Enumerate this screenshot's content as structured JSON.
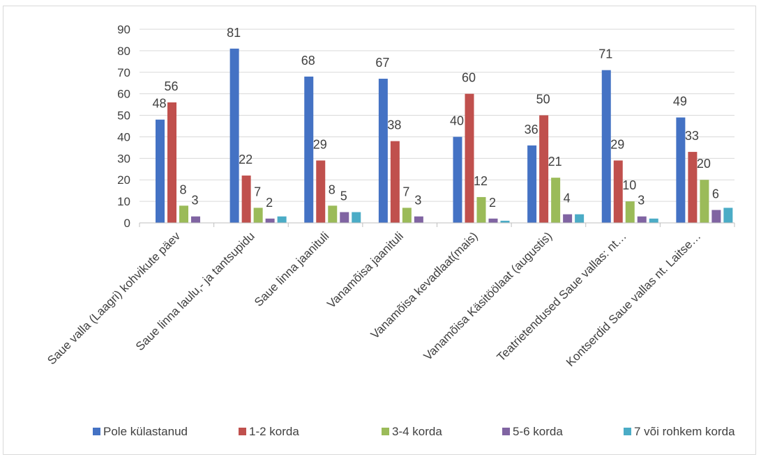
{
  "chart_data": {
    "type": "bar",
    "categories": [
      "Saue valla (Laagri) kohvikute päev",
      "Saue linna laulu,- ja tantsupidu",
      "Saue linna jaanituli",
      "Vanamõisa jaanituli",
      "Vanamõisa kevadlaat(mais)",
      "Vanamõisa Käsitöölaat (augustis)",
      "Teatrietendused Saue vallas: nt…",
      "Kontserdid Saue vallas nt. Laitse…"
    ],
    "series": [
      {
        "name": "Pole külastanud",
        "color": "#4472c4",
        "values": [
          48,
          81,
          68,
          67,
          40,
          36,
          71,
          49
        ],
        "labels": [
          "48",
          "81",
          "68",
          "67",
          "40",
          "36",
          "71",
          "49"
        ]
      },
      {
        "name": "1-2 korda",
        "color": "#c0504d",
        "values": [
          56,
          22,
          29,
          38,
          60,
          50,
          29,
          33
        ],
        "labels": [
          "56",
          "22",
          "29",
          "38",
          "60",
          "50",
          "29",
          "33"
        ]
      },
      {
        "name": "3-4 korda",
        "color": "#9bbb59",
        "values": [
          8,
          7,
          8,
          7,
          12,
          21,
          10,
          20
        ],
        "labels": [
          "8",
          "7",
          "8",
          "7",
          "12",
          "21",
          "10",
          "20"
        ]
      },
      {
        "name": "5-6 korda",
        "color": "#8064a2",
        "values": [
          3,
          2,
          5,
          3,
          2,
          4,
          3,
          6
        ],
        "labels": [
          "3",
          "2",
          "5",
          "3",
          "2",
          "4",
          "3",
          "6"
        ]
      },
      {
        "name": "7 või rohkem korda",
        "color": "#4bacc6",
        "values": [
          0,
          3,
          5,
          0,
          1,
          4,
          2,
          7
        ],
        "labels": [
          "",
          "",
          "",
          "",
          "",
          "",
          "",
          ""
        ]
      }
    ],
    "ylim": [
      0,
      90
    ],
    "yticks": [
      "0",
      "10",
      "20",
      "30",
      "40",
      "50",
      "60",
      "70",
      "80",
      "90"
    ],
    "grid": true,
    "legend_position": "bottom"
  }
}
